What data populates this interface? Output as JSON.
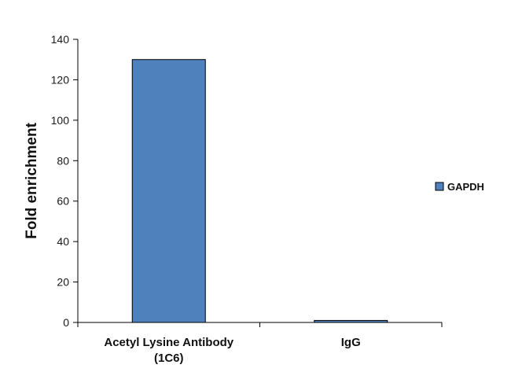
{
  "chart_data": {
    "type": "bar",
    "categories": [
      "Acetyl Lysine Antibody (1C6)",
      "IgG"
    ],
    "category_lines": [
      [
        "Acetyl Lysine Antibody",
        "(1C6)"
      ],
      [
        "IgG"
      ]
    ],
    "series": [
      {
        "name": "GAPDH",
        "values": [
          130,
          1
        ],
        "color": "#4f81bd"
      }
    ],
    "ylabel": "Fold enrichment",
    "xlabel": "",
    "ylim": [
      0,
      140
    ],
    "yticks": [
      0,
      20,
      40,
      60,
      80,
      100,
      120,
      140
    ],
    "grid": false,
    "legend_position": "right"
  }
}
